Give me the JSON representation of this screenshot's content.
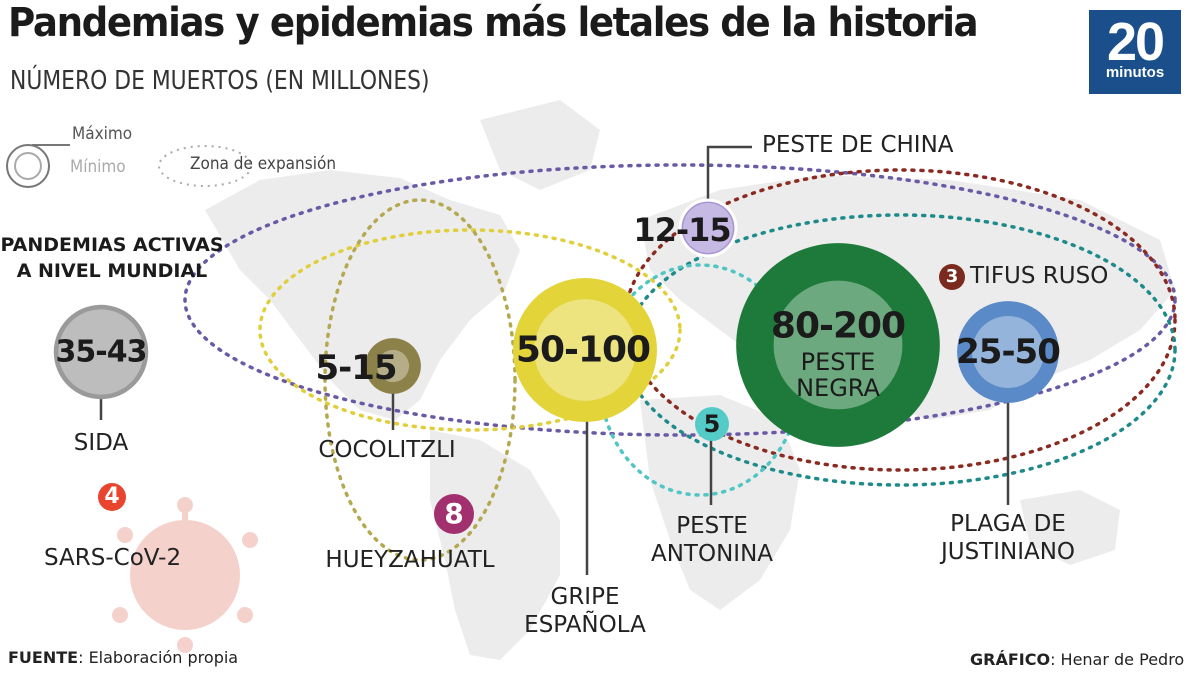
{
  "header": {
    "title": "Pandemias y epidemias más letales de la historia",
    "subtitle": "NÚMERO DE MUERTOS (EN MILLONES)"
  },
  "logo": {
    "number": "20",
    "word": "minutos",
    "color": "#1a4f8c"
  },
  "legend": {
    "max_label": "Máximo",
    "min_label": "Mínimo",
    "zone_label": "Zona de expansión"
  },
  "active_section": {
    "title_line1": "PANDEMIAS ACTIVAS",
    "title_line2": "A NIVEL MUNDIAL"
  },
  "chart_data": {
    "type": "bubble",
    "title": "Pandemias y epidemias más letales de la historia",
    "subtitle": "NÚMERO DE MUERTOS (EN MILLONES)",
    "units": "millones de muertos",
    "pandemics": [
      {
        "name": "SIDA",
        "value_label": "35-43",
        "min": 35,
        "max": 43,
        "color": "#9a9a9a",
        "active": true
      },
      {
        "name": "SARS-CoV-2",
        "value_label": "4",
        "min": 4,
        "max": 4,
        "color": "#e8442e",
        "active": true
      },
      {
        "name": "COCOLITZLI",
        "value_label": "5-15",
        "min": 5,
        "max": 15,
        "color": "#8c8148"
      },
      {
        "name": "HUEYZAHUATL",
        "value_label": "8",
        "min": 8,
        "max": 8,
        "color": "#a3306e"
      },
      {
        "name": "GRIPE ESPAÑOLA",
        "value_label": "50-100",
        "min": 50,
        "max": 100,
        "color": "#e3d43a"
      },
      {
        "name": "PESTE DE CHINA",
        "value_label": "12-15",
        "min": 12,
        "max": 15,
        "color": "#a894d4"
      },
      {
        "name": "PESTE ANTONINA",
        "value_label": "5",
        "min": 5,
        "max": 5,
        "color": "#4fc6c4"
      },
      {
        "name": "PESTE NEGRA",
        "value_label": "80-200",
        "min": 80,
        "max": 200,
        "color": "#1e7a3a"
      },
      {
        "name": "TIFUS RUSO",
        "value_label": "3",
        "min": 3,
        "max": 3,
        "color": "#7a2a1e"
      },
      {
        "name": "PLAGA DE JUSTINIANO",
        "value_label": "25-50",
        "min": 25,
        "max": 50,
        "color": "#5a8bc8"
      }
    ]
  },
  "labels": {
    "sida": "SIDA",
    "sars": "SARS-CoV-2",
    "cocolitzli": "COCOLITZLI",
    "hueyzahuatl": "HUEYZAHUATL",
    "gripe_line1": "GRIPE",
    "gripe_line2": "ESPAÑOLA",
    "china": "PESTE DE CHINA",
    "antonina_line1": "PESTE",
    "antonina_line2": "ANTONINA",
    "negra_line1": "PESTE",
    "negra_line2": "NEGRA",
    "tifus": "TIFUS RUSO",
    "justiniano_line1": "PLAGA DE",
    "justiniano_line2": "JUSTINIANO"
  },
  "footer": {
    "source_key": "FUENTE",
    "source_value": ": Elaboración propia",
    "credit_key": "GRÁFICO",
    "credit_value": ": Henar de Pedro"
  }
}
